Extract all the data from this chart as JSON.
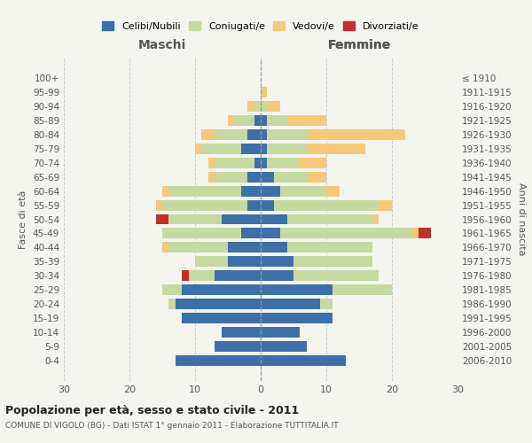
{
  "age_groups": [
    "0-4",
    "5-9",
    "10-14",
    "15-19",
    "20-24",
    "25-29",
    "30-34",
    "35-39",
    "40-44",
    "45-49",
    "50-54",
    "55-59",
    "60-64",
    "65-69",
    "70-74",
    "75-79",
    "80-84",
    "85-89",
    "90-94",
    "95-99",
    "100+"
  ],
  "birth_years": [
    "2006-2010",
    "2001-2005",
    "1996-2000",
    "1991-1995",
    "1986-1990",
    "1981-1985",
    "1976-1980",
    "1971-1975",
    "1966-1970",
    "1961-1965",
    "1956-1960",
    "1951-1955",
    "1946-1950",
    "1941-1945",
    "1936-1940",
    "1931-1935",
    "1926-1930",
    "1921-1925",
    "1916-1920",
    "1911-1915",
    "≤ 1910"
  ],
  "maschi": {
    "celibi": [
      13,
      7,
      6,
      12,
      13,
      12,
      7,
      5,
      5,
      3,
      6,
      2,
      3,
      2,
      1,
      3,
      2,
      1,
      0,
      0,
      0
    ],
    "coniugati": [
      0,
      0,
      0,
      0,
      1,
      3,
      4,
      5,
      9,
      12,
      8,
      13,
      11,
      5,
      6,
      6,
      5,
      3,
      1,
      0,
      0
    ],
    "vedovi": [
      0,
      0,
      0,
      0,
      0,
      0,
      0,
      0,
      1,
      0,
      0,
      1,
      1,
      1,
      1,
      1,
      2,
      1,
      1,
      0,
      0
    ],
    "divorziati": [
      0,
      0,
      0,
      0,
      0,
      0,
      1,
      0,
      0,
      0,
      2,
      0,
      0,
      0,
      0,
      0,
      0,
      0,
      0,
      0,
      0
    ]
  },
  "femmine": {
    "celibi": [
      13,
      7,
      6,
      11,
      9,
      11,
      5,
      5,
      4,
      3,
      4,
      2,
      3,
      2,
      1,
      1,
      1,
      1,
      0,
      0,
      0
    ],
    "coniugati": [
      0,
      0,
      0,
      0,
      2,
      9,
      13,
      12,
      13,
      20,
      13,
      16,
      7,
      5,
      5,
      6,
      6,
      3,
      1,
      0,
      0
    ],
    "vedovi": [
      0,
      0,
      0,
      0,
      0,
      0,
      0,
      0,
      0,
      1,
      1,
      2,
      2,
      3,
      4,
      9,
      15,
      6,
      2,
      1,
      0
    ],
    "divorziati": [
      0,
      0,
      0,
      0,
      0,
      0,
      0,
      0,
      0,
      2,
      0,
      0,
      0,
      0,
      0,
      0,
      0,
      0,
      0,
      0,
      0
    ]
  },
  "colors": {
    "celibi": "#3d6fa8",
    "coniugati": "#c5d9a0",
    "vedovi": "#f5c87a",
    "divorziati": "#c0302a"
  },
  "xlim": 30,
  "title_main": "Popolazione per età, sesso e stato civile - 2011",
  "title_sub": "COMUNE DI VIGOLO (BG) - Dati ISTAT 1° gennaio 2011 - Elaborazione TUTTITALIA.IT",
  "ylabel_left": "Fasce di età",
  "ylabel_right": "Anni di nascita",
  "xlabel_maschi": "Maschi",
  "xlabel_femmine": "Femmine",
  "legend_labels": [
    "Celibi/Nubili",
    "Coniugati/e",
    "Vedovi/e",
    "Divorziati/e"
  ],
  "background_color": "#f5f5f0",
  "grid_color": "#cccccc"
}
